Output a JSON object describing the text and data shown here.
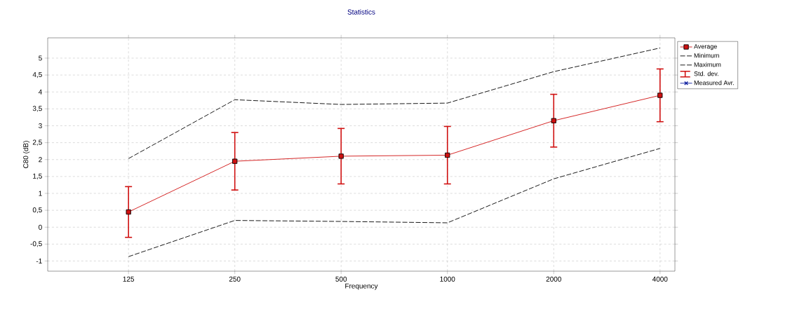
{
  "chart_data": {
    "type": "line",
    "title": "Statistics",
    "xlabel": "Frequency",
    "ylabel": "C80 (dB)",
    "categories": [
      "125",
      "250",
      "500",
      "1000",
      "2000",
      "4000"
    ],
    "series": [
      {
        "name": "Average",
        "color": "#d01010",
        "marker": "square",
        "line_style": "solid",
        "values": [
          0.45,
          1.95,
          2.1,
          2.13,
          3.15,
          3.9
        ],
        "errors": [
          0.75,
          0.85,
          0.82,
          0.85,
          0.78,
          0.78
        ]
      },
      {
        "name": "Minimum",
        "color": "#000000",
        "marker": "none",
        "line_style": "dashed",
        "values": [
          -0.87,
          0.2,
          0.17,
          0.13,
          1.43,
          2.33
        ]
      },
      {
        "name": "Maximum",
        "color": "#000000",
        "marker": "none",
        "line_style": "dashed",
        "values": [
          2.03,
          3.77,
          3.63,
          3.67,
          4.6,
          5.3
        ]
      },
      {
        "name": "Std. dev.",
        "color": "#d01010",
        "values": [
          null,
          null,
          null,
          null,
          null,
          null
        ]
      },
      {
        "name": "Measured Avr.",
        "color": "#1020a0",
        "marker": "cross",
        "line_style": "solid",
        "values": [
          null,
          null,
          null,
          null,
          null,
          null
        ]
      }
    ],
    "ylim": [
      -1.3,
      5.6
    ],
    "yticks": [
      -1,
      {
        "value": -0.5,
        "label": "-0,5"
      },
      0,
      {
        "value": 0.5,
        "label": "0,5"
      },
      1,
      {
        "value": 1.5,
        "label": "1,5"
      },
      2,
      {
        "value": 2.5,
        "label": "2,5"
      },
      3,
      {
        "value": 3.5,
        "label": "3,5"
      },
      4,
      {
        "value": 4.5,
        "label": "4,5"
      },
      5
    ],
    "grid": true,
    "legend": "right"
  }
}
